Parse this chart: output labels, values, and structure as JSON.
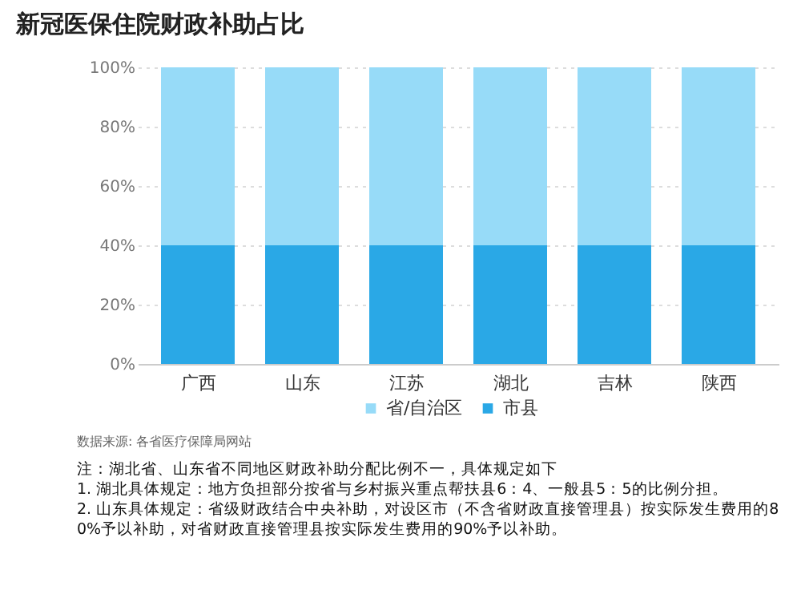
{
  "chart_data": {
    "type": "bar",
    "title": "新冠医保住院财政补助占比",
    "categories": [
      "广西",
      "山东",
      "江苏",
      "湖北",
      "吉林",
      "陕西"
    ],
    "stacked": true,
    "series": [
      {
        "name": "市县",
        "color": "#2aa8e6",
        "values": [
          40,
          40,
          40,
          40,
          40,
          40
        ]
      },
      {
        "name": "省/自治区",
        "color": "#97dbf8",
        "values": [
          60,
          60,
          60,
          60,
          60,
          60
        ]
      }
    ],
    "ylim": [
      0,
      100
    ],
    "yticks": [
      {
        "value": 0,
        "label": "0%"
      },
      {
        "value": 20,
        "label": "20%"
      },
      {
        "value": 40,
        "label": "40%"
      },
      {
        "value": 60,
        "label": "60%"
      },
      {
        "value": 80,
        "label": "80%"
      },
      {
        "value": 100,
        "label": "100%"
      }
    ],
    "grid": "y",
    "legend": "bottom",
    "annotations": [
      "数据来源: 各省医疗保障局网站",
      "注：湖北省、山东省不同地区财政补助分配比例不一，具体规定如下",
      "1. 湖北具体规定：地方负担部分按省与乡村振兴重点帮扶县6：4、一般县5：5的比例分担。",
      "2. 山东具体规定：省级财政结合中央补助，对设区市（不含省财政直接管理县）按实际发生费用的80%予以补助，对省财政直接管理县按实际发生费用的90%予以补助。"
    ]
  }
}
